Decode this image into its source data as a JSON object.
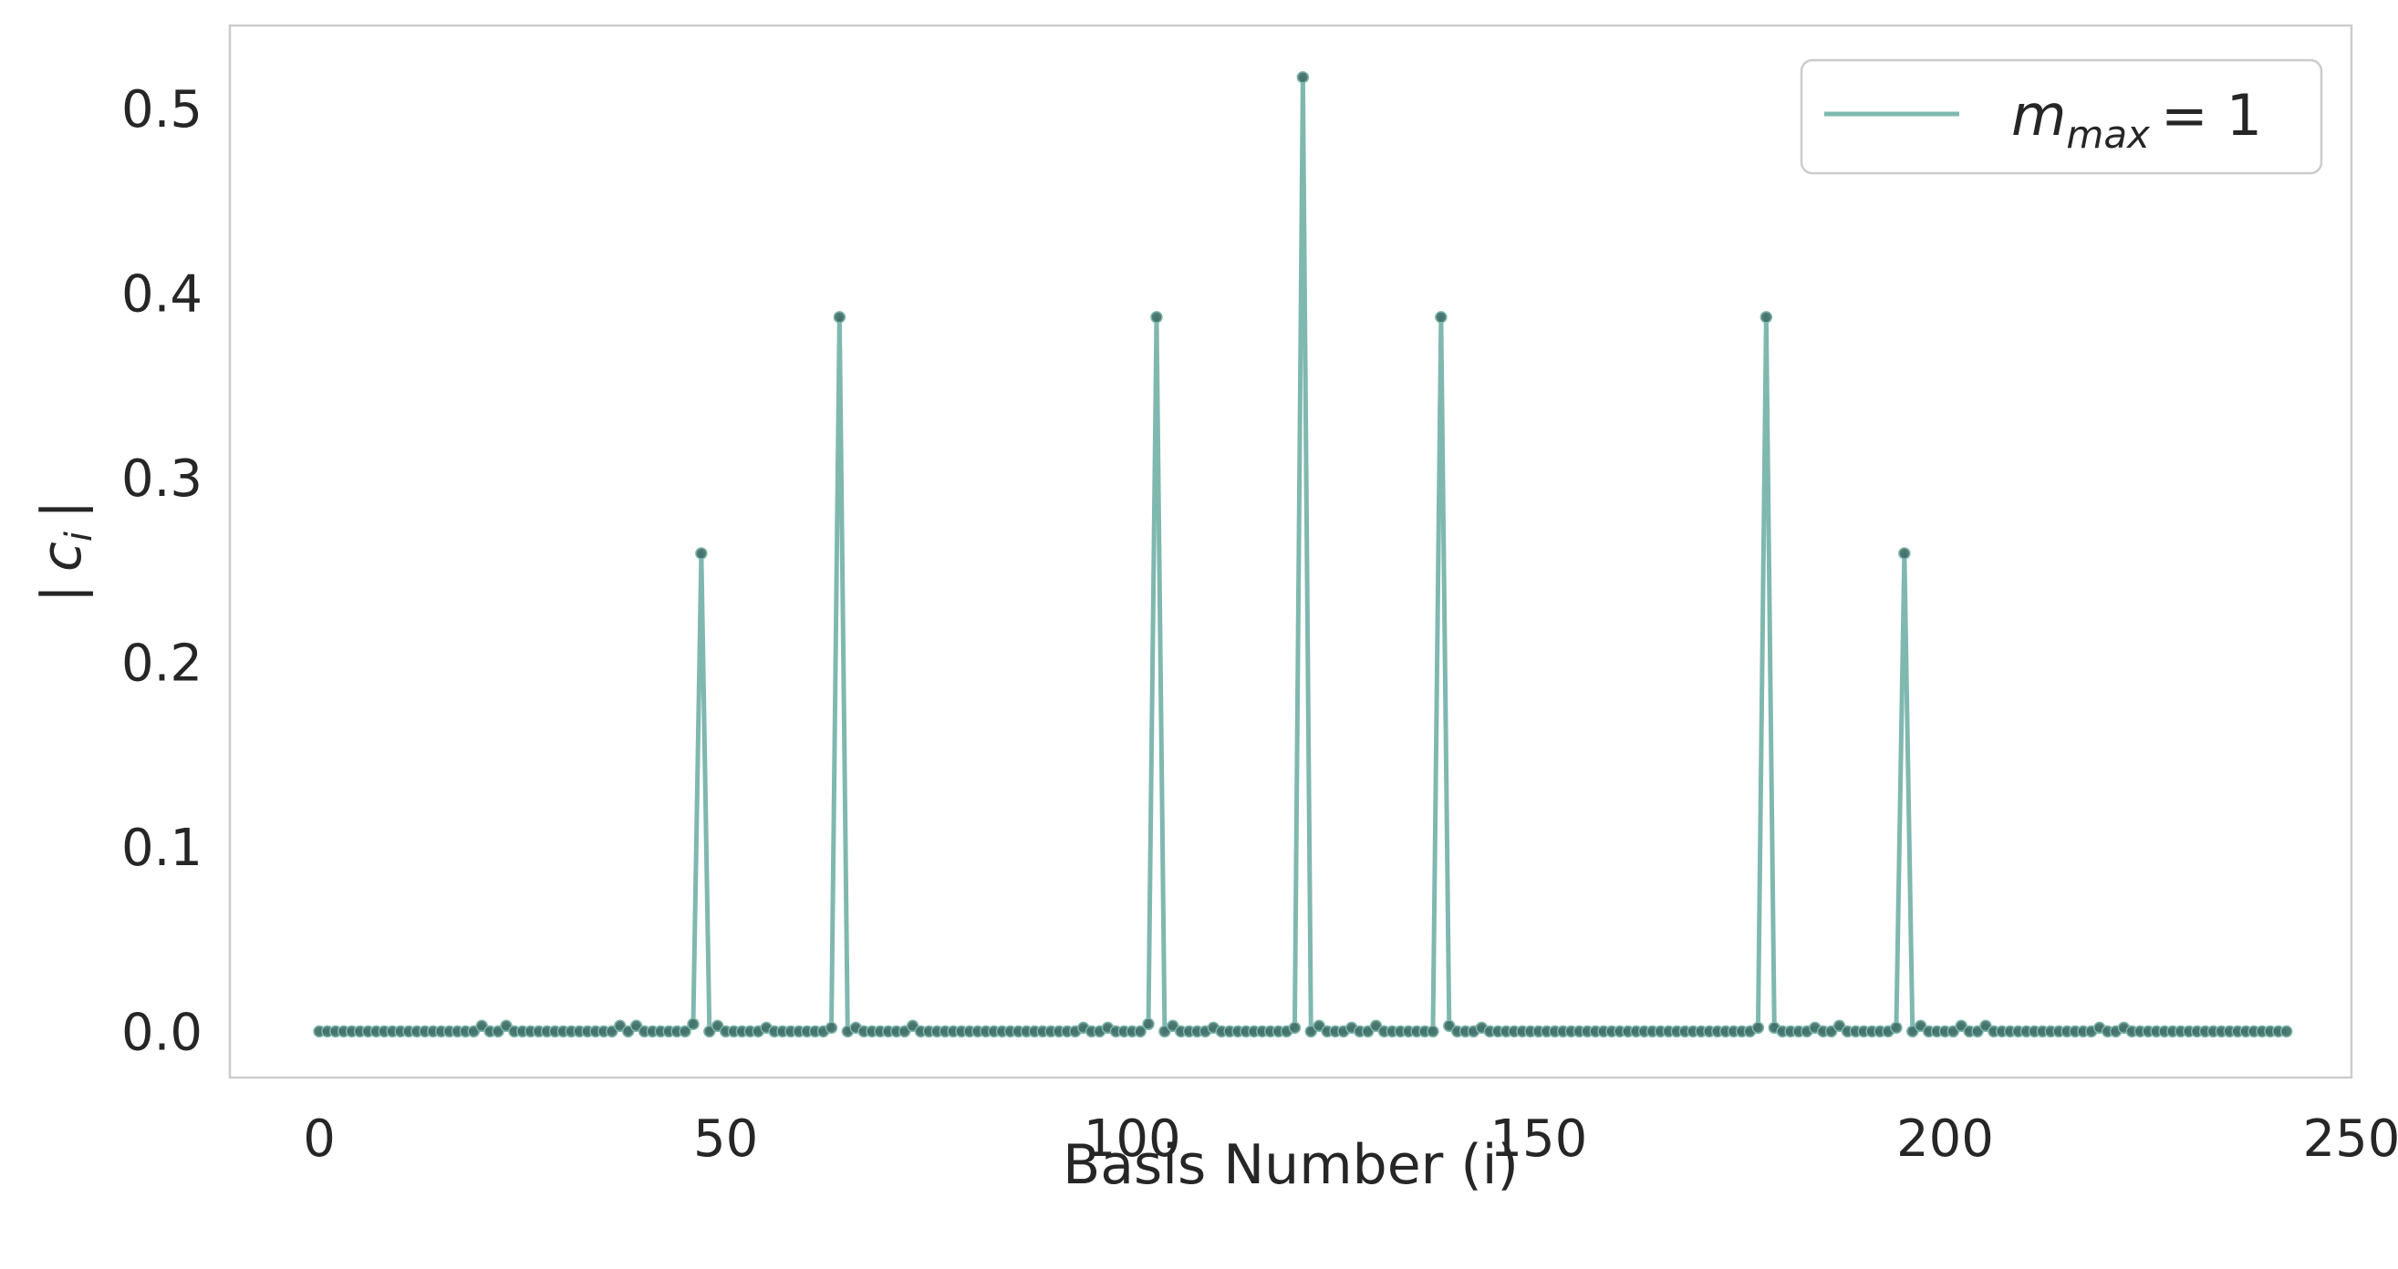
{
  "chart_data": {
    "type": "line",
    "xlabel": "Basis Number (i)",
    "ylabel": "| c_i |",
    "ylabel_main": "c",
    "ylabel_sub": "i",
    "ylabel_bar": "|",
    "xlim": [
      -11,
      250
    ],
    "ylim": [
      -0.025,
      0.545
    ],
    "xticks": [
      0,
      50,
      100,
      150,
      200,
      250
    ],
    "yticks": [
      0.0,
      0.1,
      0.2,
      0.3,
      0.4,
      0.5
    ],
    "xtick_labels": [
      "0",
      "50",
      "100",
      "150",
      "200",
      "250"
    ],
    "ytick_labels": [
      "0.0",
      "0.1",
      "0.2",
      "0.3",
      "0.4",
      "0.5"
    ],
    "grid": false,
    "legend_position": "top-right",
    "line_color": "#7fb8ae",
    "marker_color": "#3e6d66",
    "series": [
      {
        "name": "m_max = 1",
        "legend_label": {
          "base": "m",
          "sub": "max",
          "rest": "= 1"
        },
        "n_points": 243,
        "baseline": 0.0,
        "peaks": [
          {
            "x": 47,
            "y": 0.259
          },
          {
            "x": 64,
            "y": 0.387
          },
          {
            "x": 103,
            "y": 0.387
          },
          {
            "x": 121,
            "y": 0.517
          },
          {
            "x": 138,
            "y": 0.387
          },
          {
            "x": 178,
            "y": 0.387
          },
          {
            "x": 195,
            "y": 0.259
          }
        ],
        "small_bumps": [
          {
            "x": 20,
            "y": 0.003
          },
          {
            "x": 23,
            "y": 0.003
          },
          {
            "x": 37,
            "y": 0.003
          },
          {
            "x": 39,
            "y": 0.003
          },
          {
            "x": 46,
            "y": 0.004
          },
          {
            "x": 49,
            "y": 0.003
          },
          {
            "x": 55,
            "y": 0.002
          },
          {
            "x": 63,
            "y": 0.002
          },
          {
            "x": 66,
            "y": 0.002
          },
          {
            "x": 73,
            "y": 0.003
          },
          {
            "x": 94,
            "y": 0.002
          },
          {
            "x": 97,
            "y": 0.002
          },
          {
            "x": 102,
            "y": 0.004
          },
          {
            "x": 105,
            "y": 0.003
          },
          {
            "x": 110,
            "y": 0.002
          },
          {
            "x": 120,
            "y": 0.002
          },
          {
            "x": 123,
            "y": 0.003
          },
          {
            "x": 127,
            "y": 0.002
          },
          {
            "x": 130,
            "y": 0.003
          },
          {
            "x": 139,
            "y": 0.003
          },
          {
            "x": 143,
            "y": 0.002
          },
          {
            "x": 177,
            "y": 0.002
          },
          {
            "x": 179,
            "y": 0.002
          },
          {
            "x": 184,
            "y": 0.002
          },
          {
            "x": 187,
            "y": 0.003
          },
          {
            "x": 194,
            "y": 0.002
          },
          {
            "x": 197,
            "y": 0.003
          },
          {
            "x": 202,
            "y": 0.003
          },
          {
            "x": 205,
            "y": 0.003
          },
          {
            "x": 219,
            "y": 0.002
          },
          {
            "x": 222,
            "y": 0.002
          }
        ]
      }
    ]
  }
}
